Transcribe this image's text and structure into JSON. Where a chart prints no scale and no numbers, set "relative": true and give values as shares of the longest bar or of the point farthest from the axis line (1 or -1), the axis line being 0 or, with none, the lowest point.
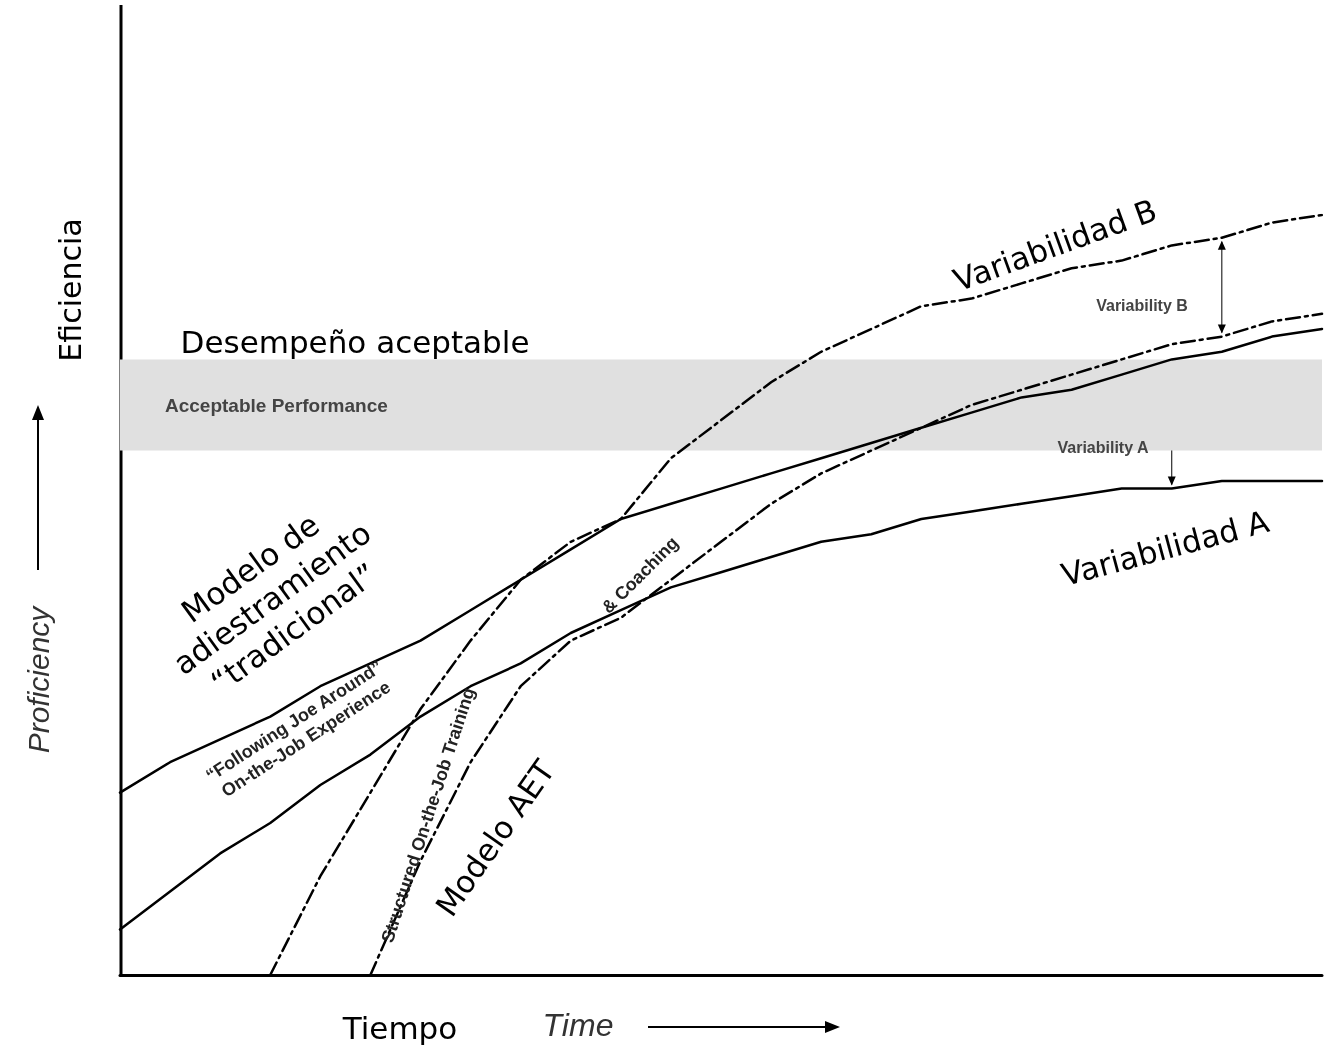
{
  "chart_data": {
    "type": "line",
    "relative": true,
    "xlabel": "Time",
    "ylabel": "Proficiency",
    "categories": [
      null,
      null,
      null,
      null,
      null,
      null,
      null,
      null,
      null,
      null,
      null,
      null,
      null,
      null,
      null,
      null,
      null,
      null,
      null,
      null,
      null,
      null,
      null,
      null,
      null
    ],
    "series": [
      {
        "color": "#000000",
        "line_style": "solid",
        "values": [
          0.24,
          0.28,
          0.31,
          0.34,
          0.38,
          0.41,
          0.44,
          0.48,
          0.52,
          0.56,
          0.6,
          0.62,
          0.64,
          0.66,
          0.68,
          0.7,
          0.72,
          0.74,
          0.76,
          0.77,
          0.79,
          0.81,
          0.82,
          0.84,
          0.85
        ]
      },
      {
        "color": "#000000",
        "line_style": "solid",
        "values": [
          0.06,
          0.11,
          0.16,
          0.2,
          0.25,
          0.29,
          0.34,
          0.38,
          0.41,
          0.45,
          0.48,
          0.51,
          0.53,
          0.55,
          0.57,
          0.58,
          0.6,
          0.61,
          0.62,
          0.63,
          0.64,
          0.64,
          0.65,
          0.65,
          0.65
        ]
      },
      {
        "color": "#000000",
        "line_style": "dashed",
        "values": [
          null,
          null,
          null,
          0,
          0.13,
          0.24,
          0.35,
          0.44,
          0.52,
          0.57,
          0.6,
          0.68,
          0.73,
          0.78,
          0.82,
          0.85,
          0.88,
          0.89,
          0.91,
          0.93,
          0.94,
          0.96,
          0.97,
          0.99,
          1.0
        ]
      },
      {
        "color": "#000000",
        "line_style": "dashed",
        "values": [
          null,
          null,
          null,
          null,
          null,
          0,
          0.15,
          0.28,
          0.38,
          0.44,
          0.47,
          0.52,
          0.57,
          0.62,
          0.66,
          0.69,
          0.72,
          0.75,
          0.77,
          0.79,
          0.81,
          0.83,
          0.84,
          0.86,
          0.87
        ]
      }
    ],
    "bands": [
      {
        "axis": "y",
        "from": 0.69,
        "to": 0.81,
        "label": "Acceptable Performance",
        "color": "#e0e0e0"
      }
    ],
    "marker": "none",
    "grid": false,
    "annotations": [
      "Desempeño aceptable",
      "Variabilidad B",
      "Variability B",
      "Variability A",
      "Variabilidad A",
      "Modelo de\nadiestramiento\n“tradicional”",
      "“Following Joe Around”\nOn-the-Job Experience",
      "Structured On-the-Job Training",
      "& Coaching",
      "Modelo AET",
      "Eficiencia",
      "Tiempo"
    ]
  }
}
